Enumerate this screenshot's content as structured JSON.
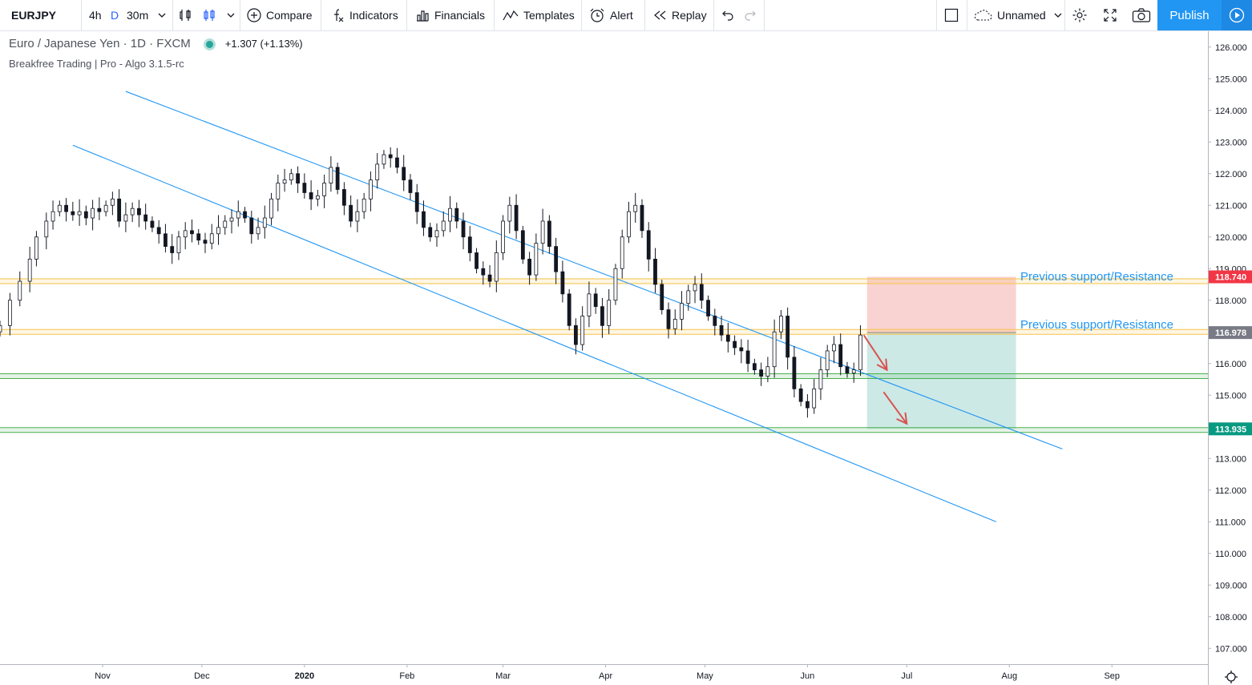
{
  "toolbar": {
    "symbol": "EURJPY",
    "intervals": [
      "4h",
      "D",
      "30m"
    ],
    "compare": "Compare",
    "indicators": "Indicators",
    "financials": "Financials",
    "templates": "Templates",
    "alert": "Alert",
    "replay": "Replay",
    "layout_name": "Unnamed",
    "publish": "Publish",
    "accent": "#2196f3"
  },
  "legend": {
    "title": "Euro / Japanese Yen · 1D · FXCM",
    "change": "+1.307 (+1.13%)",
    "indicator": "Breakfree Trading | Pro - Algo 3.1.5-rc"
  },
  "chart_data": {
    "type": "candlestick",
    "symbol": "EURJPY",
    "interval": "1D",
    "ylim": [
      106.5,
      126.5
    ],
    "y_ticks": [
      "126.000",
      "125.000",
      "124.000",
      "123.000",
      "122.000",
      "121.000",
      "120.000",
      "119.000",
      "118.000",
      "117.000",
      "116.000",
      "115.000",
      "114.000",
      "113.000",
      "112.000",
      "111.000",
      "110.000",
      "109.000",
      "108.000",
      "107.000"
    ],
    "x_ticks": [
      "Nov",
      "Dec",
      "2020",
      "Feb",
      "Mar",
      "Apr",
      "May",
      "Jun",
      "Jul",
      "Aug",
      "Sep"
    ],
    "tick_dates": [
      "2019-11-01",
      "2019-12-01",
      "2020-01-01",
      "2020-02-01",
      "2020-03-01",
      "2020-04-01",
      "2020-05-01",
      "2020-06-01",
      "2020-07-01",
      "2020-08-01",
      "2020-09-01"
    ],
    "xlim": [
      "2019-10-01",
      "2020-09-30"
    ],
    "series_close": [
      [
        "2019-10-01",
        117.2
      ],
      [
        "2019-10-04",
        118.0
      ],
      [
        "2019-10-07",
        118.6
      ],
      [
        "2019-10-10",
        119.3
      ],
      [
        "2019-10-12",
        120.0
      ],
      [
        "2019-10-15",
        120.5
      ],
      [
        "2019-10-17",
        120.8
      ],
      [
        "2019-10-19",
        121.0
      ],
      [
        "2019-10-21",
        120.8
      ],
      [
        "2019-10-23",
        120.7
      ],
      [
        "2019-10-25",
        120.8
      ],
      [
        "2019-10-27",
        120.6
      ],
      [
        "2019-10-29",
        120.9
      ],
      [
        "2019-10-31",
        120.8
      ],
      [
        "2019-11-02",
        121.0
      ],
      [
        "2019-11-04",
        121.2
      ],
      [
        "2019-11-06",
        120.5
      ],
      [
        "2019-11-08",
        120.7
      ],
      [
        "2019-11-10",
        120.9
      ],
      [
        "2019-11-12",
        120.7
      ],
      [
        "2019-11-14",
        120.5
      ],
      [
        "2019-11-16",
        120.3
      ],
      [
        "2019-11-18",
        120.1
      ],
      [
        "2019-11-20",
        119.7
      ],
      [
        "2019-11-22",
        119.5
      ],
      [
        "2019-11-24",
        120.0
      ],
      [
        "2019-11-26",
        120.2
      ],
      [
        "2019-11-28",
        120.1
      ],
      [
        "2019-11-30",
        119.9
      ],
      [
        "2019-12-02",
        119.8
      ],
      [
        "2019-12-04",
        120.1
      ],
      [
        "2019-12-06",
        120.3
      ],
      [
        "2019-12-08",
        120.5
      ],
      [
        "2019-12-10",
        120.6
      ],
      [
        "2019-12-12",
        120.8
      ],
      [
        "2019-12-14",
        120.6
      ],
      [
        "2019-12-16",
        120.1
      ],
      [
        "2019-12-18",
        120.3
      ],
      [
        "2019-12-20",
        120.6
      ],
      [
        "2019-12-22",
        121.2
      ],
      [
        "2019-12-24",
        121.7
      ],
      [
        "2019-12-26",
        121.8
      ],
      [
        "2019-12-28",
        122.0
      ],
      [
        "2019-12-30",
        121.7
      ],
      [
        "2020-01-01",
        121.4
      ],
      [
        "2020-01-03",
        121.2
      ],
      [
        "2020-01-05",
        121.3
      ],
      [
        "2020-01-07",
        121.7
      ],
      [
        "2020-01-09",
        122.2
      ],
      [
        "2020-01-11",
        121.5
      ],
      [
        "2020-01-13",
        121.0
      ],
      [
        "2020-01-15",
        120.5
      ],
      [
        "2020-01-17",
        120.8
      ],
      [
        "2020-01-19",
        121.2
      ],
      [
        "2020-01-21",
        121.8
      ],
      [
        "2020-01-23",
        122.3
      ],
      [
        "2020-01-25",
        122.6
      ],
      [
        "2020-01-27",
        122.5
      ],
      [
        "2020-01-29",
        122.2
      ],
      [
        "2020-01-31",
        121.8
      ],
      [
        "2020-02-02",
        121.4
      ],
      [
        "2020-02-04",
        120.8
      ],
      [
        "2020-02-06",
        120.3
      ],
      [
        "2020-02-08",
        120.0
      ],
      [
        "2020-02-10",
        120.2
      ],
      [
        "2020-02-12",
        120.5
      ],
      [
        "2020-02-14",
        120.9
      ],
      [
        "2020-02-16",
        120.5
      ],
      [
        "2020-02-18",
        120.0
      ],
      [
        "2020-02-20",
        119.5
      ],
      [
        "2020-02-22",
        119.0
      ],
      [
        "2020-02-24",
        118.8
      ],
      [
        "2020-02-26",
        118.6
      ],
      [
        "2020-02-28",
        119.5
      ],
      [
        "2020-03-01",
        120.5
      ],
      [
        "2020-03-03",
        121.0
      ],
      [
        "2020-03-05",
        120.2
      ],
      [
        "2020-03-07",
        119.3
      ],
      [
        "2020-03-09",
        118.8
      ],
      [
        "2020-03-11",
        119.8
      ],
      [
        "2020-03-13",
        120.5
      ],
      [
        "2020-03-15",
        119.7
      ],
      [
        "2020-03-17",
        118.9
      ],
      [
        "2020-03-19",
        118.2
      ],
      [
        "2020-03-21",
        117.2
      ],
      [
        "2020-03-23",
        116.6
      ],
      [
        "2020-03-25",
        117.5
      ],
      [
        "2020-03-27",
        118.2
      ],
      [
        "2020-03-29",
        117.8
      ],
      [
        "2020-03-31",
        117.2
      ],
      [
        "2020-04-02",
        118.0
      ],
      [
        "2020-04-04",
        119.0
      ],
      [
        "2020-04-06",
        120.0
      ],
      [
        "2020-04-08",
        120.8
      ],
      [
        "2020-04-10",
        121.0
      ],
      [
        "2020-04-12",
        120.2
      ],
      [
        "2020-04-14",
        119.3
      ],
      [
        "2020-04-16",
        118.5
      ],
      [
        "2020-04-18",
        117.7
      ],
      [
        "2020-04-20",
        117.1
      ],
      [
        "2020-04-22",
        117.4
      ],
      [
        "2020-04-24",
        117.9
      ],
      [
        "2020-04-26",
        118.3
      ],
      [
        "2020-04-28",
        118.5
      ],
      [
        "2020-04-30",
        118.0
      ],
      [
        "2020-05-02",
        117.5
      ],
      [
        "2020-05-04",
        117.2
      ],
      [
        "2020-05-06",
        116.9
      ],
      [
        "2020-05-08",
        116.7
      ],
      [
        "2020-05-10",
        116.5
      ],
      [
        "2020-05-12",
        116.4
      ],
      [
        "2020-05-14",
        116.0
      ],
      [
        "2020-05-16",
        115.8
      ],
      [
        "2020-05-18",
        115.6
      ],
      [
        "2020-05-20",
        115.9
      ],
      [
        "2020-05-22",
        117.0
      ],
      [
        "2020-05-24",
        117.5
      ],
      [
        "2020-05-26",
        116.2
      ],
      [
        "2020-05-28",
        115.2
      ],
      [
        "2020-05-30",
        114.8
      ],
      [
        "2020-06-01",
        114.6
      ],
      [
        "2020-06-03",
        115.2
      ],
      [
        "2020-06-05",
        115.8
      ],
      [
        "2020-06-07",
        116.4
      ],
      [
        "2020-06-09",
        116.6
      ],
      [
        "2020-06-11",
        115.9
      ],
      [
        "2020-06-13",
        115.7
      ],
      [
        "2020-06-15",
        115.8
      ],
      [
        "2020-06-17",
        116.9
      ]
    ],
    "last_price": 116.978,
    "price_tags": [
      {
        "value": "118.740",
        "color": "#f23645"
      },
      {
        "value": "116.978",
        "color": "#787b86"
      },
      {
        "value": "113.935",
        "color": "#089981"
      }
    ],
    "horizontal_levels": [
      {
        "price": 118.6,
        "label": "Previous support/Resistance",
        "color": "#f7c24a"
      },
      {
        "price": 117.0,
        "label": "Previous support/Resistance",
        "color": "#f7c24a"
      },
      {
        "price": 115.6,
        "label": "",
        "color": "#4caf50"
      },
      {
        "price": 113.9,
        "label": "",
        "color": "#4caf50"
      }
    ],
    "channel_lines": [
      {
        "from": [
          "2019-11-08",
          124.6
        ],
        "to": [
          "2020-08-17",
          113.3
        ],
        "color": "#2196f3"
      },
      {
        "from": [
          "2019-10-23",
          122.9
        ],
        "to": [
          "2020-07-28",
          111.0
        ],
        "color": "#2196f3"
      }
    ],
    "position": {
      "type": "short",
      "entry": 116.978,
      "stop": 118.74,
      "target": 113.935,
      "start": "2020-06-19",
      "end": "2020-08-03",
      "loss_color": "#f8c8c5",
      "profit_color": "#c6e7e3"
    },
    "arrows": [
      {
        "from": [
          "2020-06-18",
          116.9
        ],
        "to": [
          "2020-06-25",
          115.8
        ],
        "color": "#d9534f"
      },
      {
        "from": [
          "2020-06-24",
          115.1
        ],
        "to": [
          "2020-07-01",
          114.1
        ],
        "color": "#d9534f"
      }
    ]
  }
}
